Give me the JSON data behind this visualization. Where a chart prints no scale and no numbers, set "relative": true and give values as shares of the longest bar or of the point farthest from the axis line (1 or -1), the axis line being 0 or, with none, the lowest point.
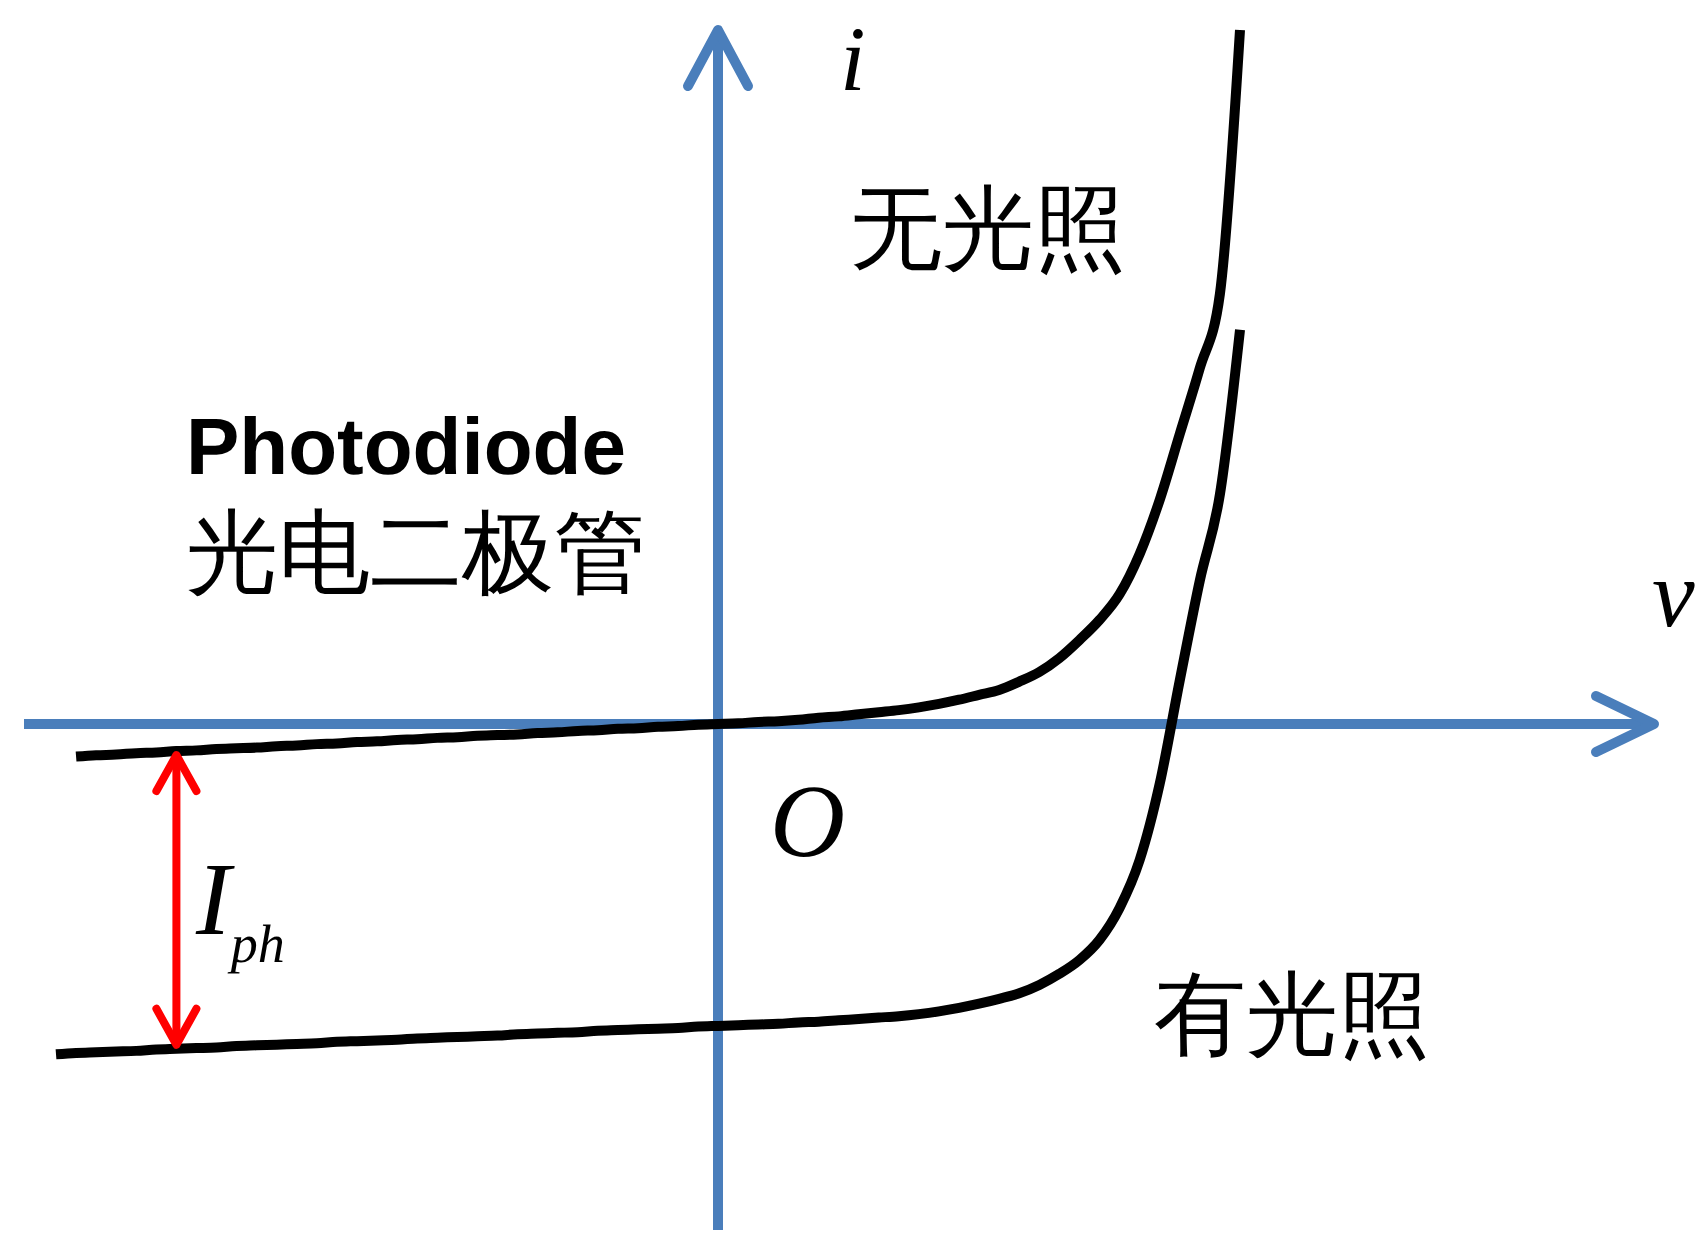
{
  "chart_data": {
    "type": "line",
    "title": "Photodiode",
    "subtitle": "光电二极管",
    "xlabel": "v",
    "ylabel": "i",
    "relative": true,
    "categories": [
      null,
      null,
      null,
      null,
      null,
      null,
      null,
      null,
      null,
      null,
      null,
      null,
      null,
      null,
      null,
      null,
      null,
      null,
      null,
      null,
      null,
      null,
      null,
      null,
      null,
      null,
      null,
      null,
      null,
      null,
      null,
      null,
      null,
      null,
      null,
      null,
      null,
      null,
      null,
      null,
      null,
      null,
      null,
      null,
      null,
      null,
      null,
      null,
      null,
      null,
      null,
      null,
      null,
      null,
      null,
      null,
      null,
      null,
      null,
      null
    ],
    "series": [
      {
        "name": "无光照",
        "color": "#000000",
        "values": [
          null,
          -0.047,
          -0.045,
          -0.044,
          -0.042,
          -0.041,
          -0.039,
          -0.038,
          -0.036,
          -0.035,
          -0.034,
          -0.032,
          -0.031,
          -0.029,
          -0.028,
          -0.026,
          -0.025,
          -0.023,
          -0.022,
          -0.02,
          -0.019,
          -0.017,
          -0.016,
          -0.015,
          -0.013,
          -0.012,
          -0.01,
          -0.009,
          -0.007,
          -0.006,
          -0.004,
          -0.003,
          -0.001,
          0,
          0.001,
          0.003,
          0.004,
          0.006,
          0.009,
          0.011,
          0.014,
          0.017,
          0.02,
          0.024,
          0.029,
          0.035,
          0.042,
          0.049,
          0.061,
          0.075,
          0.095,
          0.121,
          0.15,
          0.187,
          0.245,
          0.323,
          0.418,
          0.513,
          0.62,
          1
        ]
      },
      {
        "name": "有光照",
        "color": "#000000",
        "values": [
          -0.476,
          -0.474,
          -0.473,
          -0.472,
          -0.471,
          -0.469,
          -0.468,
          -0.467,
          -0.466,
          -0.464,
          -0.463,
          -0.462,
          -0.461,
          -0.46,
          -0.458,
          -0.457,
          -0.456,
          -0.455,
          -0.453,
          -0.452,
          -0.451,
          -0.45,
          -0.449,
          -0.447,
          -0.446,
          -0.445,
          -0.444,
          -0.442,
          -0.441,
          -0.44,
          -0.439,
          -0.438,
          -0.436,
          -0.435,
          -0.434,
          -0.433,
          -0.432,
          -0.43,
          -0.429,
          -0.427,
          -0.425,
          -0.423,
          -0.421,
          -0.418,
          -0.414,
          -0.409,
          -0.403,
          -0.396,
          -0.388,
          -0.376,
          -0.36,
          -0.34,
          -0.311,
          -0.265,
          -0.196,
          -0.086,
          0.063,
          0.207,
          0.331,
          0.568
        ]
      }
    ],
    "ref_lines": [
      {
        "axis": "y",
        "value": 0,
        "color": "#4a7ebb"
      }
    ],
    "annotations": [
      "O",
      "I$_{ph}$"
    ]
  }
}
